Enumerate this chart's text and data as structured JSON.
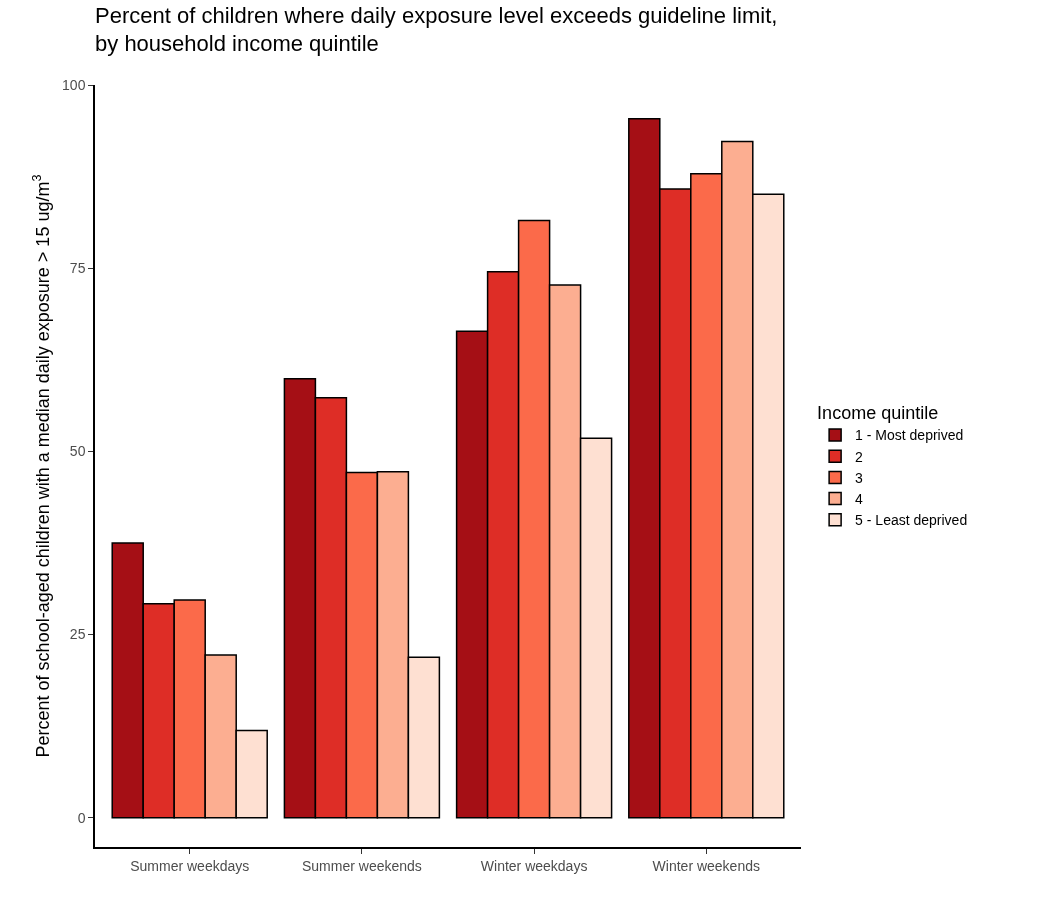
{
  "chart_data": {
    "type": "bar",
    "title": "Percent of children where daily exposure level exceeds guideline limit,\nby household income quintile",
    "ylabel": "Percent of school-aged children with a median daily exposure > 15 ug/m$^{3}$",
    "legend_title": "Income quintile",
    "categories": [
      "Summer weekdays",
      "Summer weekends",
      "Winter weekdays",
      "Winter weekends"
    ],
    "series": [
      {
        "name": "1 - Most deprived",
        "color": "#a50f15",
        "values": [
          37.5,
          59.9,
          66.4,
          95.4
        ]
      },
      {
        "name": "2",
        "color": "#de2d26",
        "values": [
          29.2,
          57.3,
          74.5,
          85.8
        ]
      },
      {
        "name": "3",
        "color": "#fb6a4a",
        "values": [
          29.7,
          47.1,
          81.5,
          87.9
        ]
      },
      {
        "name": "4",
        "color": "#fcae91",
        "values": [
          22.2,
          47.2,
          72.7,
          92.3
        ]
      },
      {
        "name": "5 - Least deprived",
        "color": "#fee0d2",
        "values": [
          11.9,
          21.9,
          51.8,
          85.1
        ]
      }
    ],
    "ylim": [
      -4,
      100
    ],
    "yticks": [
      0,
      25,
      50,
      75,
      100
    ],
    "grid": false,
    "legend": "right"
  }
}
